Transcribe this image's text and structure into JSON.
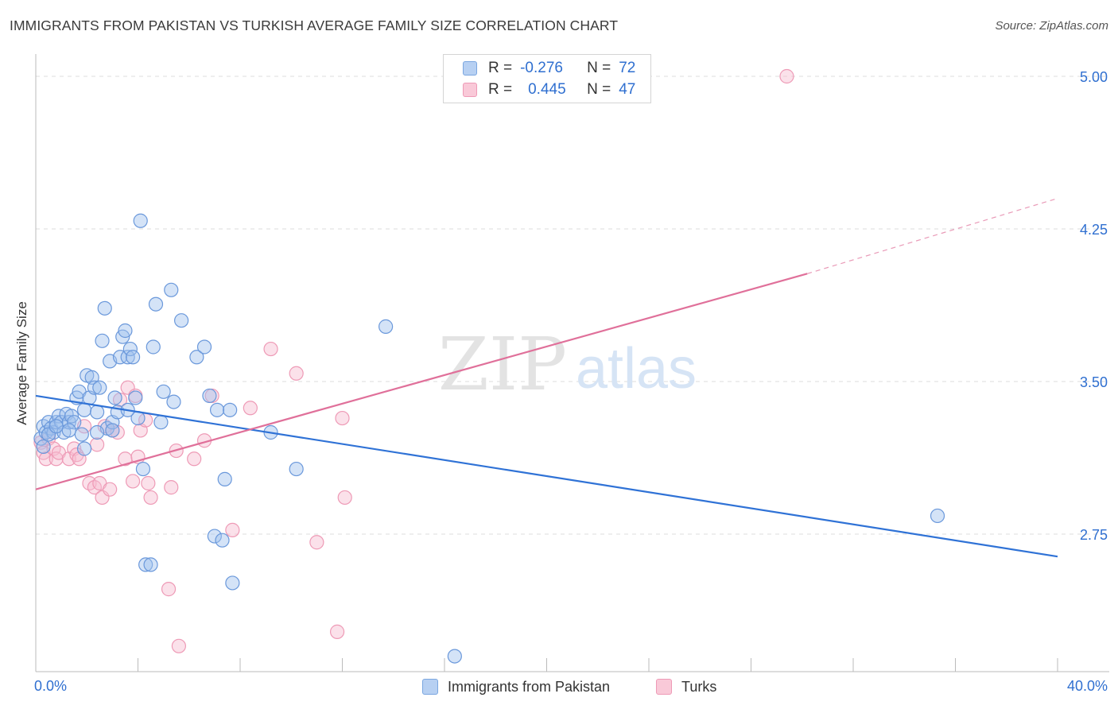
{
  "title": "IMMIGRANTS FROM PAKISTAN VS TURKISH AVERAGE FAMILY SIZE CORRELATION CHART",
  "source": "Source: ZipAtlas.com",
  "watermark": {
    "zip": "ZIP",
    "atlas": "atlas"
  },
  "legend": {
    "r_label": "R =",
    "n_label": "N =",
    "series": [
      {
        "name": "Immigrants from Pakistan",
        "r": "-0.276",
        "n": "72",
        "color": "#5a8fe0"
      },
      {
        "name": "Turks",
        "r": "0.445",
        "n": "47",
        "color": "#ee8fb0"
      }
    ]
  },
  "chart_data": {
    "type": "scatter",
    "title": "IMMIGRANTS FROM PAKISTAN VS TURKISH AVERAGE FAMILY SIZE CORRELATION CHART",
    "xlabel": "",
    "ylabel": "Average Family Size",
    "xlim": [
      0,
      40
    ],
    "ylim": [
      2.05,
      5.1
    ],
    "x_tick_labels": [
      "0.0%",
      "40.0%"
    ],
    "y_ticks": [
      2.75,
      3.5,
      4.25,
      5.0
    ],
    "y_tick_labels": [
      "2.75",
      "3.50",
      "4.25",
      "5.00"
    ],
    "series": [
      {
        "name": "Immigrants from Pakistan",
        "color": "#5a8fe0",
        "trend": {
          "x0": 0,
          "y0": 3.43,
          "x1": 40,
          "y1": 2.64
        },
        "points": [
          [
            0.2,
            3.22
          ],
          [
            0.3,
            3.28
          ],
          [
            0.4,
            3.25
          ],
          [
            0.5,
            3.3
          ],
          [
            0.6,
            3.27
          ],
          [
            0.7,
            3.25
          ],
          [
            0.8,
            3.3
          ],
          [
            0.9,
            3.33
          ],
          [
            1.0,
            3.3
          ],
          [
            1.1,
            3.25
          ],
          [
            1.2,
            3.34
          ],
          [
            1.3,
            3.3
          ],
          [
            1.4,
            3.33
          ],
          [
            1.5,
            3.3
          ],
          [
            1.6,
            3.42
          ],
          [
            1.7,
            3.45
          ],
          [
            1.8,
            3.24
          ],
          [
            1.9,
            3.36
          ],
          [
            2.0,
            3.53
          ],
          [
            2.1,
            3.42
          ],
          [
            2.2,
            3.52
          ],
          [
            2.3,
            3.47
          ],
          [
            2.4,
            3.35
          ],
          [
            2.5,
            3.47
          ],
          [
            2.6,
            3.7
          ],
          [
            2.7,
            3.86
          ],
          [
            2.8,
            3.27
          ],
          [
            2.9,
            3.6
          ],
          [
            3.0,
            3.3
          ],
          [
            3.1,
            3.42
          ],
          [
            3.2,
            3.35
          ],
          [
            3.3,
            3.62
          ],
          [
            3.4,
            3.72
          ],
          [
            3.5,
            3.75
          ],
          [
            3.6,
            3.62
          ],
          [
            3.7,
            3.66
          ],
          [
            3.8,
            3.62
          ],
          [
            3.9,
            3.42
          ],
          [
            4.0,
            3.32
          ],
          [
            4.1,
            4.29
          ],
          [
            4.2,
            3.07
          ],
          [
            4.3,
            2.6
          ],
          [
            4.5,
            2.6
          ],
          [
            4.6,
            3.67
          ],
          [
            4.7,
            3.88
          ],
          [
            4.9,
            3.3
          ],
          [
            5.0,
            3.45
          ],
          [
            5.3,
            3.95
          ],
          [
            5.4,
            3.4
          ],
          [
            5.7,
            3.8
          ],
          [
            6.3,
            3.62
          ],
          [
            6.6,
            3.67
          ],
          [
            6.8,
            3.43
          ],
          [
            7.0,
            2.74
          ],
          [
            7.1,
            3.36
          ],
          [
            7.3,
            2.72
          ],
          [
            7.4,
            3.02
          ],
          [
            7.6,
            3.36
          ],
          [
            7.7,
            2.51
          ],
          [
            9.2,
            3.25
          ],
          [
            10.2,
            3.07
          ],
          [
            13.7,
            3.77
          ],
          [
            16.4,
            2.15
          ],
          [
            35.3,
            2.84
          ],
          [
            0.3,
            3.18
          ],
          [
            0.5,
            3.24
          ],
          [
            0.8,
            3.28
          ],
          [
            1.3,
            3.26
          ],
          [
            1.9,
            3.17
          ],
          [
            2.4,
            3.25
          ],
          [
            3.0,
            3.26
          ],
          [
            3.6,
            3.36
          ]
        ]
      },
      {
        "name": "Turks",
        "color": "#ee8fb0",
        "trend": {
          "x0": 0,
          "y0": 2.97,
          "x1": 30.2,
          "y1": 4.03,
          "dashed_to": {
            "x": 40,
            "y": 4.4
          }
        },
        "points": [
          [
            0.2,
            3.2
          ],
          [
            0.3,
            3.15
          ],
          [
            0.4,
            3.12
          ],
          [
            0.5,
            3.22
          ],
          [
            0.7,
            3.17
          ],
          [
            0.8,
            3.12
          ],
          [
            0.9,
            3.15
          ],
          [
            1.3,
            3.12
          ],
          [
            1.5,
            3.17
          ],
          [
            1.6,
            3.14
          ],
          [
            1.7,
            3.12
          ],
          [
            1.9,
            3.28
          ],
          [
            2.1,
            3.0
          ],
          [
            2.3,
            2.98
          ],
          [
            2.4,
            3.19
          ],
          [
            2.5,
            3.0
          ],
          [
            2.6,
            2.93
          ],
          [
            2.7,
            3.28
          ],
          [
            2.9,
            2.97
          ],
          [
            3.0,
            3.26
          ],
          [
            3.2,
            3.25
          ],
          [
            3.3,
            3.41
          ],
          [
            3.5,
            3.12
          ],
          [
            3.6,
            3.47
          ],
          [
            3.8,
            3.01
          ],
          [
            3.9,
            3.43
          ],
          [
            4.0,
            3.13
          ],
          [
            4.1,
            3.26
          ],
          [
            4.3,
            3.31
          ],
          [
            4.4,
            3.0
          ],
          [
            4.5,
            2.93
          ],
          [
            5.2,
            2.48
          ],
          [
            5.3,
            2.98
          ],
          [
            5.5,
            3.16
          ],
          [
            5.6,
            2.2
          ],
          [
            6.2,
            3.12
          ],
          [
            6.6,
            3.21
          ],
          [
            6.9,
            3.43
          ],
          [
            7.7,
            2.77
          ],
          [
            8.4,
            3.37
          ],
          [
            9.2,
            3.66
          ],
          [
            10.2,
            3.54
          ],
          [
            11.0,
            2.71
          ],
          [
            11.8,
            2.27
          ],
          [
            12.0,
            3.32
          ],
          [
            12.1,
            2.93
          ],
          [
            29.4,
            5.0
          ]
        ]
      }
    ]
  }
}
